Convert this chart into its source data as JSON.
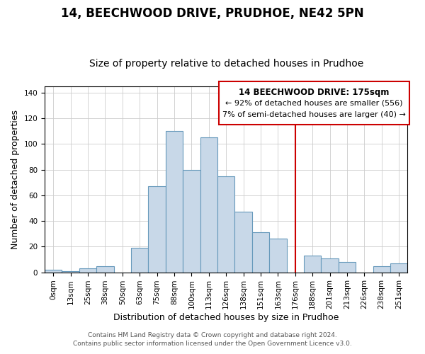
{
  "title": "14, BEECHWOOD DRIVE, PRUDHOE, NE42 5PN",
  "subtitle": "Size of property relative to detached houses in Prudhoe",
  "xlabel": "Distribution of detached houses by size in Prudhoe",
  "ylabel": "Number of detached properties",
  "bar_labels": [
    "0sqm",
    "13sqm",
    "25sqm",
    "38sqm",
    "50sqm",
    "63sqm",
    "75sqm",
    "88sqm",
    "100sqm",
    "113sqm",
    "126sqm",
    "138sqm",
    "151sqm",
    "163sqm",
    "176sqm",
    "188sqm",
    "201sqm",
    "213sqm",
    "226sqm",
    "238sqm",
    "251sqm"
  ],
  "bar_values": [
    2,
    1,
    3,
    5,
    0,
    19,
    67,
    110,
    80,
    105,
    75,
    47,
    31,
    26,
    0,
    13,
    11,
    8,
    0,
    5,
    7
  ],
  "bar_color": "#c8d8e8",
  "bar_edgecolor": "#6699bb",
  "vline_x": 14,
  "vline_color": "#cc0000",
  "annotation_title": "14 BEECHWOOD DRIVE: 175sqm",
  "annotation_line1": "← 92% of detached houses are smaller (556)",
  "annotation_line2": "7% of semi-detached houses are larger (40) →",
  "footer1": "Contains HM Land Registry data © Crown copyright and database right 2024.",
  "footer2": "Contains public sector information licensed under the Open Government Licence v3.0.",
  "ylim": [
    0,
    145
  ],
  "title_fontsize": 12,
  "subtitle_fontsize": 10,
  "axis_label_fontsize": 9,
  "tick_fontsize": 7.5,
  "footer_fontsize": 6.5
}
